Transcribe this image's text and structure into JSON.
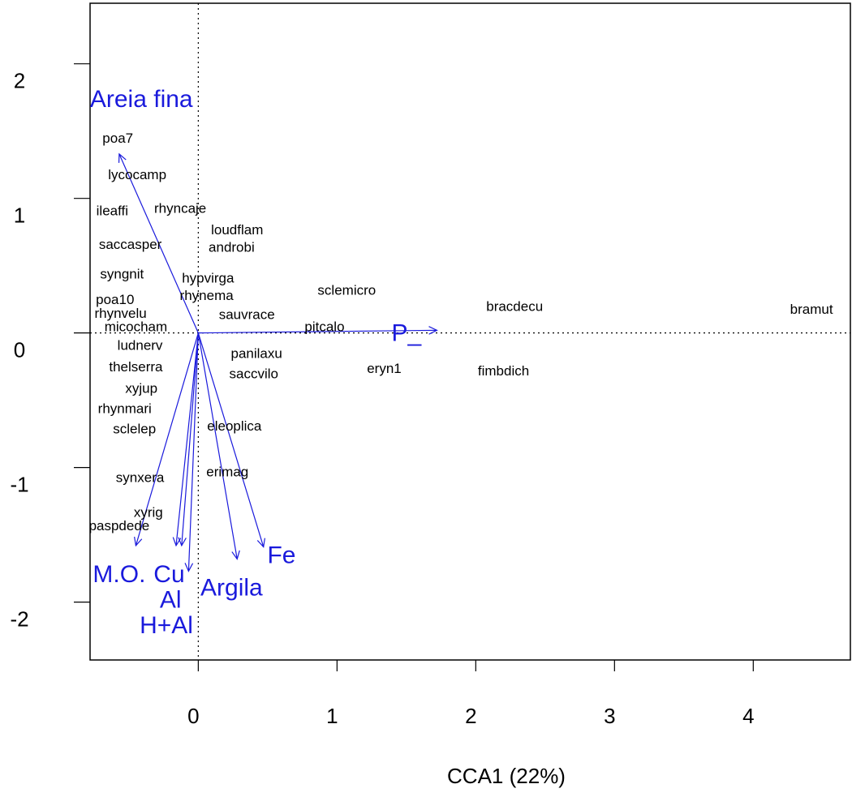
{
  "chart_data": {
    "type": "scatter",
    "xlabel": "CCA1 (22%)",
    "ylabel": "",
    "xlim": [
      -0.78,
      4.7
    ],
    "ylim": [
      -2.43,
      2.45
    ],
    "xticks": [
      0,
      1,
      2,
      3,
      4
    ],
    "yticks": [
      -2,
      -1,
      0,
      1,
      2
    ],
    "xtick_labels": [
      "0",
      "1",
      "2",
      "3",
      "4"
    ],
    "ytick_labels": [
      "-2",
      "-1",
      "0",
      "1",
      "2"
    ],
    "reference_lines": {
      "x": 0,
      "y": 0,
      "style": "dotted"
    },
    "arrow_color": "#1a1adc",
    "species": [
      {
        "name": "poa7",
        "x": -0.58,
        "y": 1.45
      },
      {
        "name": "lycocamp",
        "x": -0.44,
        "y": 1.18
      },
      {
        "name": "ileaffi",
        "x": -0.62,
        "y": 0.91
      },
      {
        "name": "rhyncaje",
        "x": -0.13,
        "y": 0.93
      },
      {
        "name": "loudflam",
        "x": 0.28,
        "y": 0.77
      },
      {
        "name": "androbi",
        "x": 0.24,
        "y": 0.64
      },
      {
        "name": "saccasper",
        "x": -0.49,
        "y": 0.66
      },
      {
        "name": "syngnit",
        "x": -0.55,
        "y": 0.44
      },
      {
        "name": "hypvirga",
        "x": 0.07,
        "y": 0.41
      },
      {
        "name": "rhynema",
        "x": 0.06,
        "y": 0.28
      },
      {
        "name": "poa10",
        "x": -0.6,
        "y": 0.25
      },
      {
        "name": "sclemicro",
        "x": 1.07,
        "y": 0.32
      },
      {
        "name": "bracdecu",
        "x": 2.28,
        "y": 0.2
      },
      {
        "name": "bramut",
        "x": 4.42,
        "y": 0.18
      },
      {
        "name": "rhynvelu",
        "x": -0.56,
        "y": 0.15
      },
      {
        "name": "sauvrace",
        "x": 0.35,
        "y": 0.14
      },
      {
        "name": "micocham",
        "x": -0.45,
        "y": 0.05
      },
      {
        "name": "pitcalo",
        "x": 0.91,
        "y": 0.05
      },
      {
        "name": "ludnerv",
        "x": -0.42,
        "y": -0.09
      },
      {
        "name": "panilaxu",
        "x": 0.42,
        "y": -0.15
      },
      {
        "name": "eryn1",
        "x": 1.34,
        "y": -0.26
      },
      {
        "name": "fimbdich",
        "x": 2.2,
        "y": -0.28
      },
      {
        "name": "thelserra",
        "x": -0.45,
        "y": -0.25
      },
      {
        "name": "saccvilo",
        "x": 0.4,
        "y": -0.3
      },
      {
        "name": "xyjup",
        "x": -0.41,
        "y": -0.41
      },
      {
        "name": "rhynmari",
        "x": -0.53,
        "y": -0.56
      },
      {
        "name": "eleoplica",
        "x": 0.26,
        "y": -0.69
      },
      {
        "name": "sclelep",
        "x": -0.46,
        "y": -0.71
      },
      {
        "name": "erimag",
        "x": 0.21,
        "y": -1.03
      },
      {
        "name": "synxera",
        "x": -0.42,
        "y": -1.07
      },
      {
        "name": "xyrig",
        "x": -0.36,
        "y": -1.33
      },
      {
        "name": "paspdede",
        "x": -0.57,
        "y": -1.43
      }
    ],
    "env_vectors": [
      {
        "name": "Areia fina",
        "x": -0.57,
        "y": 1.33,
        "label_x": -0.41,
        "label_y": 1.74
      },
      {
        "name": "P_",
        "x": 1.72,
        "y": 0.02,
        "label_x": 1.5,
        "label_y": 0.0
      },
      {
        "name": "M.O.",
        "x": -0.45,
        "y": -1.58,
        "label_x": -0.57,
        "label_y": -1.79
      },
      {
        "name": "Cu",
        "x": -0.16,
        "y": -1.58,
        "label_x": -0.21,
        "label_y": -1.79
      },
      {
        "name": "Al",
        "x": -0.12,
        "y": -1.58,
        "label_x": -0.2,
        "label_y": -1.98
      },
      {
        "name": "H+Al",
        "x": -0.07,
        "y": -1.77,
        "label_x": -0.23,
        "label_y": -2.17
      },
      {
        "name": "Argila",
        "x": 0.28,
        "y": -1.68,
        "label_x": 0.24,
        "label_y": -1.89
      },
      {
        "name": "Fe",
        "x": 0.47,
        "y": -1.59,
        "label_x": 0.6,
        "label_y": -1.65
      }
    ]
  }
}
